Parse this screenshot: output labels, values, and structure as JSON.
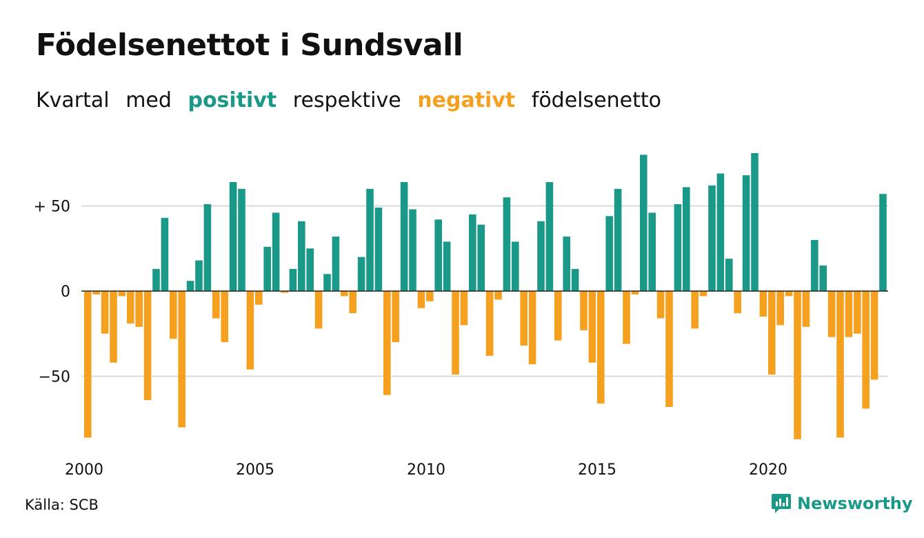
{
  "title": "Födelsenettot i Sundsvall",
  "subtitle": {
    "parts": [
      "Kvartal",
      "med",
      "positivt",
      "respektive",
      "negativt",
      "födelsenetto"
    ]
  },
  "colors": {
    "positive": "#1a9988",
    "negative": "#f5a01f",
    "grid": "#d9d9d9",
    "axis": "#222222",
    "text": "#111111"
  },
  "source": "Källa: SCB",
  "brand": {
    "name": "Newsworthy",
    "icon": "newsworthy-logo-icon"
  },
  "chart_data": {
    "type": "bar",
    "title": "Födelsenettot i Sundsvall",
    "xlabel": "",
    "ylabel": "",
    "ylim": [
      -90,
      85
    ],
    "yticks": [
      {
        "value": 50,
        "label": "+ 50"
      },
      {
        "value": 0,
        "label": "0"
      },
      {
        "value": -50,
        "label": "−50"
      }
    ],
    "xticks": [
      {
        "year": 2000,
        "label": "2000"
      },
      {
        "year": 2005,
        "label": "2005"
      },
      {
        "year": 2010,
        "label": "2010"
      },
      {
        "year": 2015,
        "label": "2015"
      },
      {
        "year": 2020,
        "label": "2020"
      }
    ],
    "grid": true,
    "start_year": 2000,
    "periods_per_year": 4,
    "values": [
      -86,
      -2,
      -25,
      -42,
      -3,
      -19,
      -21,
      -64,
      13,
      43,
      -28,
      -80,
      6,
      18,
      51,
      -16,
      -30,
      64,
      60,
      -46,
      -8,
      26,
      46,
      -1,
      13,
      41,
      25,
      -22,
      10,
      32,
      -3,
      -13,
      20,
      60,
      49,
      -61,
      -30,
      64,
      48,
      -10,
      -6,
      42,
      29,
      -49,
      -20,
      45,
      39,
      -38,
      -5,
      55,
      29,
      -32,
      -43,
      41,
      64,
      -29,
      32,
      13,
      -23,
      -42,
      -66,
      44,
      60,
      -31,
      -2,
      80,
      46,
      -16,
      -68,
      51,
      61,
      -22,
      -3,
      62,
      69,
      19,
      -13,
      68,
      81,
      -15,
      -49,
      -20,
      -3,
      -87,
      -21,
      30,
      15,
      -27,
      -86,
      -27,
      -25,
      -69,
      -52,
      57
    ]
  }
}
